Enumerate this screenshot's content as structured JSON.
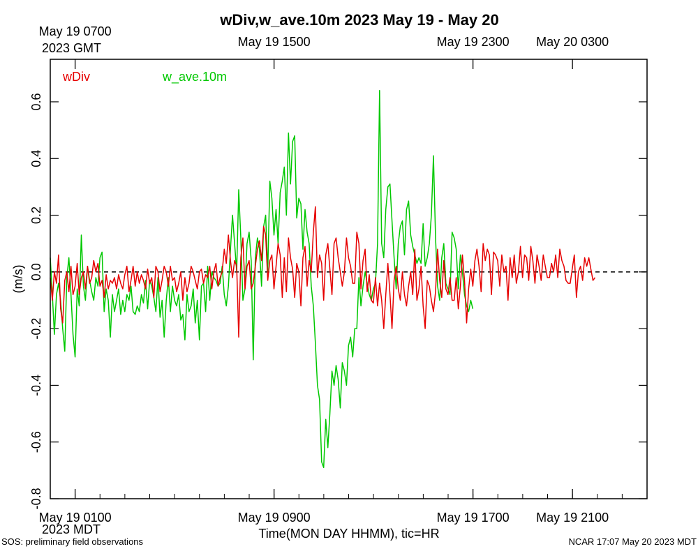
{
  "chart_data": {
    "type": "line",
    "title": "wDiv,w_ave.10m 2023 May 19 - May 20",
    "ylabel": "(m/s)",
    "xlabel": "Time(MON DAY HHMM), tic=HR",
    "ylim": [
      -0.8,
      0.75
    ],
    "y_ticks": [
      -0.8,
      -0.6,
      -0.4,
      -0.2,
      0.0,
      0.2,
      0.4,
      0.6
    ],
    "y_tick_labels": [
      "-0.8",
      "-0.6",
      "-0.4",
      "-0.2",
      "0.0",
      "0.2",
      "0.4",
      "0.6"
    ],
    "x_unit": "hours after May 19 0000 MDT",
    "x_range": [
      0.0,
      24.0
    ],
    "x_minor_ticks_every_hour": true,
    "bottom_axis": {
      "zone": "MDT",
      "zone_label": "2023 MDT",
      "major_ticks": [
        {
          "x": 1,
          "label": "May 19 0100"
        },
        {
          "x": 9,
          "label": "May 19 0900"
        },
        {
          "x": 17,
          "label": "May 19 1700"
        },
        {
          "x": 21,
          "label": "May 19 2100"
        }
      ]
    },
    "top_axis": {
      "zone": "GMT",
      "zone_label": "2023 GMT",
      "major_ticks": [
        {
          "x": 1,
          "label": "May 19 0700"
        },
        {
          "x": 9,
          "label": "May 19 1500"
        },
        {
          "x": 17,
          "label": "May 19 2300"
        },
        {
          "x": 21,
          "label": "May 20 0300"
        }
      ]
    },
    "reference_line": {
      "y": 0.0,
      "style": "dashed",
      "color": "#000000"
    },
    "grid": false,
    "legend_placement": "top-left",
    "series": [
      {
        "name": "wDiv",
        "color": "#e60000",
        "x_start": 0.0,
        "x_step": 0.0833,
        "values": [
          -0.02,
          -0.1,
          0.0,
          -0.04,
          0.06,
          -0.13,
          -0.18,
          -0.03,
          0.0,
          -0.07,
          0.02,
          -0.08,
          -0.05,
          0.03,
          -0.08,
          -0.02,
          0.0,
          -0.06,
          0.02,
          -0.04,
          -0.02,
          0.04,
          0.0,
          0.03,
          -0.05,
          -0.03,
          -0.09,
          -0.01,
          -0.06,
          -0.03,
          -0.04,
          -0.02,
          -0.06,
          -0.01,
          -0.04,
          -0.06,
          -0.01,
          0.02,
          -0.07,
          -0.03,
          0.02,
          -0.05,
          0.0,
          -0.04,
          -0.01,
          -0.03,
          -0.06,
          0.01,
          -0.04,
          -0.02,
          -0.09,
          0.02,
          0.0,
          -0.07,
          -0.03,
          0.02,
          0.0,
          -0.05,
          0.02,
          -0.03,
          -0.02,
          -0.07,
          -0.04,
          0.0,
          -0.1,
          -0.02,
          -0.07,
          -0.04,
          0.02,
          0.0,
          -0.03,
          -0.06,
          0.0,
          0.01,
          -0.04,
          -0.01,
          -0.02,
          0.02,
          -0.06,
          0.0,
          0.03,
          -0.05,
          -0.02,
          0.0,
          0.08,
          0.03,
          0.13,
          0.04,
          -0.02,
          0.04,
          0.02,
          -0.23,
          0.05,
          0.12,
          -0.06,
          0.02,
          0.04,
          -0.06,
          -0.04,
          0.02,
          0.08,
          0.11,
          0.04,
          0.16,
          0.13,
          -0.03,
          0.04,
          0.06,
          -0.06,
          0.02,
          0.1,
          0.06,
          -0.09,
          0.05,
          -0.07,
          0.12,
          0.05,
          0.01,
          -0.09,
          0.03,
          0.0,
          -0.12,
          0.05,
          0.09,
          -0.05,
          0.04,
          0.0,
          0.14,
          0.23,
          -0.02,
          0.06,
          0.03,
          -0.1,
          0.06,
          0.1,
          0.01,
          -0.08,
          0.1,
          0.12,
          0.05,
          0.0,
          -0.05,
          0.0,
          0.12,
          0.05,
          0.02,
          -0.04,
          -0.04,
          0.14,
          0.1,
          -0.06,
          0.04,
          0.08,
          -0.07,
          -0.01,
          -0.1,
          -0.11,
          -0.02,
          -0.12,
          -0.04,
          -0.1,
          -0.2,
          -0.08,
          0.03,
          -0.08,
          -0.2,
          -0.03,
          0.02,
          -0.06,
          -0.1,
          0.0,
          -0.08,
          -0.12,
          -0.05,
          0.0,
          -0.08,
          0.08,
          -0.1,
          -0.06,
          0.02,
          -0.12,
          -0.2,
          -0.03,
          -0.05,
          -0.1,
          -0.14,
          -0.07,
          0.08,
          -0.03,
          -0.09,
          0.04,
          -0.06,
          -0.08,
          -0.02,
          -0.1,
          -0.1,
          -0.02,
          -0.13,
          -0.05,
          0.06,
          -0.03,
          -0.18,
          -0.06,
          0.01,
          -0.05,
          0.04,
          0.08,
          0.02,
          -0.07,
          0.1,
          0.04,
          0.08,
          0.06,
          -0.08,
          0.07,
          0.06,
          0.04,
          -0.05,
          0.06,
          0.0,
          0.02,
          -0.1,
          0.05,
          -0.02,
          0.06,
          -0.04,
          0.0,
          0.09,
          -0.02,
          0.06,
          0.05,
          -0.03,
          0.09,
          0.04,
          -0.04,
          0.06,
          0.02,
          -0.03,
          0.06,
          0.02,
          -0.02,
          -0.02,
          0.03,
          0.0,
          0.06,
          -0.02,
          0.08,
          0.04,
          0.02,
          -0.03,
          -0.04,
          -0.04,
          0.01,
          0.06,
          -0.09,
          0.0,
          0.02,
          -0.03,
          0.05,
          0.02,
          0.05,
          0.01,
          -0.03,
          -0.02
        ]
      },
      {
        "name": "w_ave.10m",
        "color": "#00c800",
        "x_start": 0.0,
        "x_step": 0.0833,
        "values": [
          0.05,
          -0.08,
          -0.22,
          -0.08,
          -0.04,
          -0.1,
          -0.2,
          -0.28,
          -0.02,
          0.05,
          -0.08,
          -0.22,
          -0.3,
          -0.06,
          -0.12,
          0.13,
          -0.05,
          -0.1,
          0.02,
          -0.03,
          -0.07,
          -0.1,
          -0.02,
          -0.05,
          0.05,
          0.07,
          -0.14,
          -0.06,
          -0.1,
          -0.23,
          -0.08,
          -0.14,
          -0.1,
          -0.06,
          -0.15,
          -0.1,
          -0.14,
          -0.08,
          -0.1,
          -0.05,
          -0.14,
          -0.15,
          -0.12,
          -0.14,
          -0.08,
          -0.11,
          -0.03,
          -0.13,
          -0.03,
          -0.05,
          -0.09,
          -0.14,
          -0.02,
          -0.16,
          -0.1,
          -0.23,
          -0.1,
          -0.02,
          -0.14,
          -0.05,
          -0.1,
          -0.12,
          -0.08,
          -0.17,
          -0.15,
          -0.24,
          -0.08,
          -0.14,
          -0.12,
          -0.06,
          -0.18,
          -0.1,
          -0.24,
          -0.05,
          -0.04,
          -0.14,
          0.02,
          -0.1,
          0.0,
          -0.02,
          -0.03,
          -0.05,
          -0.04,
          0.02,
          -0.08,
          -0.12,
          -0.05,
          0.08,
          0.2,
          0.1,
          0.0,
          0.29,
          0.12,
          -0.1,
          -0.06,
          0.1,
          0.14,
          0.04,
          -0.31,
          0.05,
          0.12,
          0.08,
          -0.05,
          0.16,
          0.2,
          0.0,
          0.32,
          0.26,
          0.13,
          0.22,
          0.1,
          0.28,
          0.32,
          0.37,
          0.2,
          0.49,
          0.31,
          0.46,
          0.48,
          0.19,
          0.26,
          0.24,
          0.08,
          0.22,
          0.14,
          0.1,
          -0.05,
          -0.12,
          -0.25,
          -0.4,
          -0.45,
          -0.67,
          -0.69,
          -0.52,
          -0.62,
          -0.5,
          -0.35,
          -0.4,
          -0.33,
          -0.38,
          -0.48,
          -0.32,
          -0.35,
          -0.4,
          -0.26,
          -0.23,
          -0.3,
          -0.2,
          -0.2,
          -0.02,
          -0.12,
          -0.05,
          0.0,
          -0.04,
          -0.08,
          -0.1,
          -0.06,
          -0.04,
          0.1,
          0.64,
          0.1,
          0.05,
          0.22,
          0.3,
          0.31,
          0.18,
          0.05,
          -0.06,
          0.1,
          0.16,
          0.18,
          0.06,
          0.22,
          0.25,
          0.13,
          0.09,
          0.06,
          0.03,
          0.05,
          0.03,
          0.17,
          0.02,
          0.05,
          0.1,
          0.2,
          0.41,
          0.12,
          -0.05,
          -0.1,
          0.05,
          0.1,
          -0.04,
          -0.06,
          -0.08,
          0.14,
          0.12,
          0.08,
          -0.06,
          0.06,
          0.0,
          -0.08,
          -0.12,
          -0.14,
          -0.1,
          -0.13
        ]
      }
    ]
  },
  "footer": {
    "left": "SOS: preliminary field observations",
    "right": "NCAR 17:07 May 20 2023 MDT"
  }
}
